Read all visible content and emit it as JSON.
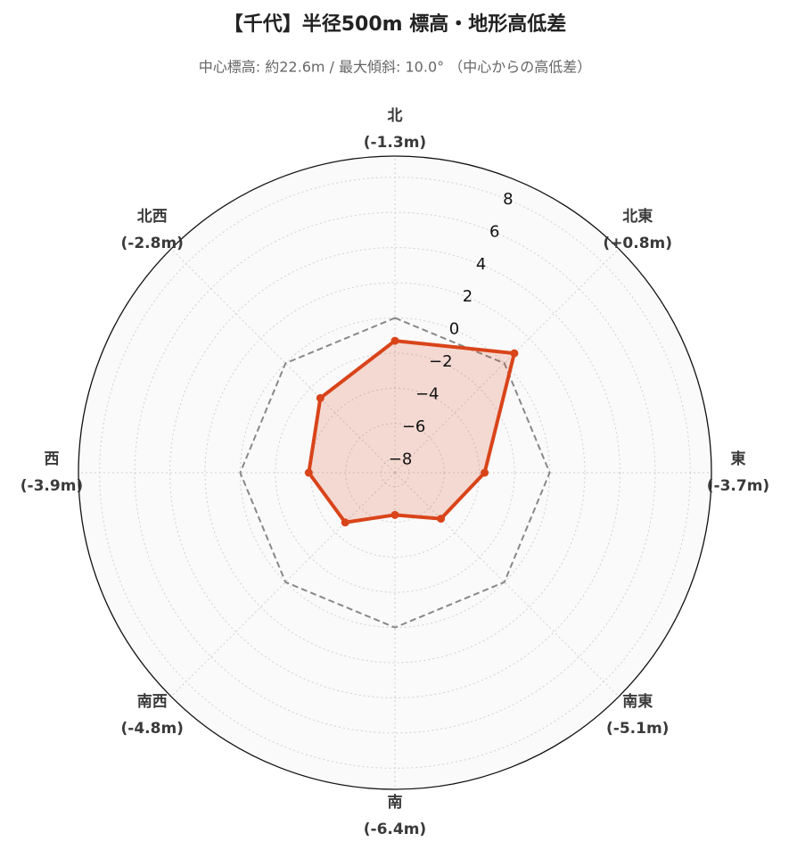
{
  "chart_data": {
    "type": "radar",
    "title": "【千代】半径500m 標高・地形高低差",
    "subtitle": "中心標高: 約22.6m / 最大傾斜: 10.0° （中心からの高低差）",
    "categories": [
      "北",
      "北東",
      "東",
      "南東",
      "南",
      "南西",
      "西",
      "北西"
    ],
    "series": [
      {
        "color": "#d9441a",
        "values": [
          -1.3,
          0.8,
          -3.7,
          -5.1,
          -6.4,
          -4.8,
          -3.9,
          -2.8
        ],
        "value_labels": [
          "(-1.3m)",
          "(+0.8m)",
          "(-3.7m)",
          "(-5.1m)",
          "(-6.4m)",
          "(-4.8m)",
          "(-3.9m)",
          "(-2.8m)"
        ]
      }
    ],
    "reference": 0,
    "ylim": [
      -8.8,
      9.2
    ],
    "yticks": [
      {
        "value": -8,
        "label": "−8"
      },
      {
        "value": -6,
        "label": "−6"
      },
      {
        "value": -4,
        "label": "−4"
      },
      {
        "value": -2,
        "label": "−2"
      },
      0,
      2,
      4,
      6,
      8
    ],
    "grid": true
  }
}
